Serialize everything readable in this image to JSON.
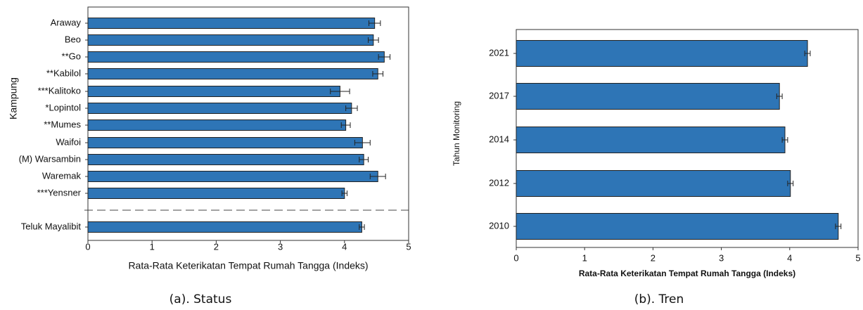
{
  "chart_data": [
    {
      "type": "bar",
      "orientation": "horizontal",
      "caption": "(a). Status",
      "xlabel": "Rata-Rata Keterikatan Tempat Rumah Tangga (Indeks)",
      "ylabel": "Kampung",
      "categories": [
        "Araway",
        "Beo",
        "**Go",
        "**Kabilol",
        "***Kalitoko",
        "*Lopintol",
        "**Mumes",
        "Waifoi",
        "(M) Warsambin",
        "Waremak",
        "***Yensner",
        "Teluk Mayalibit"
      ],
      "values": [
        4.47,
        4.45,
        4.62,
        4.52,
        3.93,
        4.11,
        4.02,
        4.28,
        4.3,
        4.52,
        4.0,
        4.27
      ],
      "errors": [
        0.09,
        0.08,
        0.09,
        0.08,
        0.15,
        0.09,
        0.07,
        0.12,
        0.07,
        0.12,
        0.04,
        0.04
      ],
      "color": "#2e75b6",
      "xlim": [
        0,
        5
      ],
      "xticks": [
        0,
        1,
        2,
        3,
        4,
        5
      ]
    },
    {
      "type": "bar",
      "orientation": "horizontal",
      "caption": "(b). Tren",
      "xlabel": "Rata-Rata Keterikatan Tempat Rumah Tangga (Indeks)",
      "ylabel": "Tahun Monitoring",
      "categories": [
        "2021",
        "2017",
        "2014",
        "2012",
        "2010"
      ],
      "values": [
        4.26,
        3.85,
        3.93,
        4.01,
        4.71
      ],
      "errors": [
        0.04,
        0.04,
        0.04,
        0.04,
        0.04
      ],
      "color": "#2e75b6",
      "xlim": [
        0,
        5
      ],
      "xticks": [
        0,
        1,
        2,
        3,
        4,
        5
      ]
    }
  ]
}
